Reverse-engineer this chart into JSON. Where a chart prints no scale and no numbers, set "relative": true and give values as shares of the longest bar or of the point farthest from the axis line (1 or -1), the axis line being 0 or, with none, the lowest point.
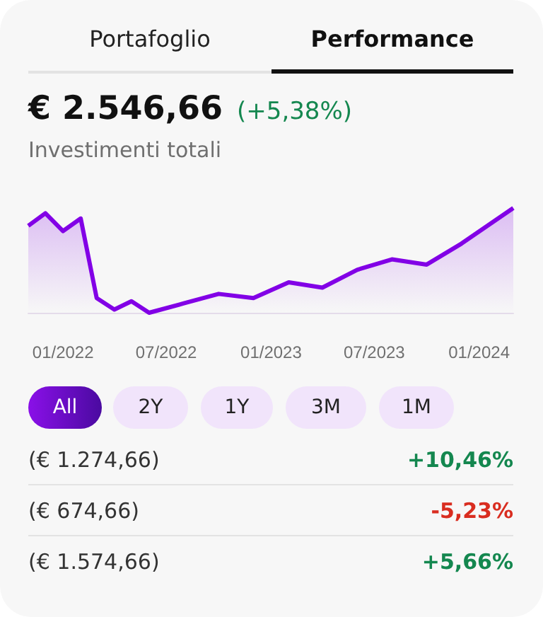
{
  "chart_data": {
    "type": "area",
    "title": "€ 2.546,66",
    "subtitle": "Investimenti totali",
    "relative": true,
    "marker": "none",
    "grid": false,
    "xlim": [
      "2021-11",
      "2024-03"
    ],
    "xticks": [
      {
        "value": "2022-01",
        "label": "01/2022"
      },
      {
        "value": "2022-07",
        "label": "07/2022"
      },
      {
        "value": "2023-01",
        "label": "01/2023"
      },
      {
        "value": "2023-07",
        "label": "07/2023"
      },
      {
        "value": "2024-01",
        "label": "01/2024"
      }
    ],
    "series": [
      {
        "color": "#8200e6",
        "x": [
          "2021-11",
          "2021-12",
          "2022-01",
          "2022-02",
          "2022-03",
          "2022-04",
          "2022-05",
          "2022-06",
          "2022-08",
          "2022-10",
          "2022-12",
          "2023-02",
          "2023-04",
          "2023-06",
          "2023-08",
          "2023-10",
          "2023-12",
          "2024-03"
        ],
        "values": [
          0.83,
          0.95,
          0.78,
          0.9,
          0.14,
          0.03,
          0.11,
          0,
          0.09,
          0.18,
          0.14,
          0.29,
          0.24,
          0.41,
          0.51,
          0.46,
          0.66,
          1
        ]
      }
    ],
    "annotations": [
      "Portafoglio",
      "Performance",
      "(+5,38%)",
      "All",
      "2Y",
      "1Y",
      "3M",
      "1M",
      "(€ 1.274,66)",
      "+10,46%",
      "(€ 674,66)",
      "-5,23%",
      "(€ 1.574,66)",
      "+5,66%"
    ]
  }
}
